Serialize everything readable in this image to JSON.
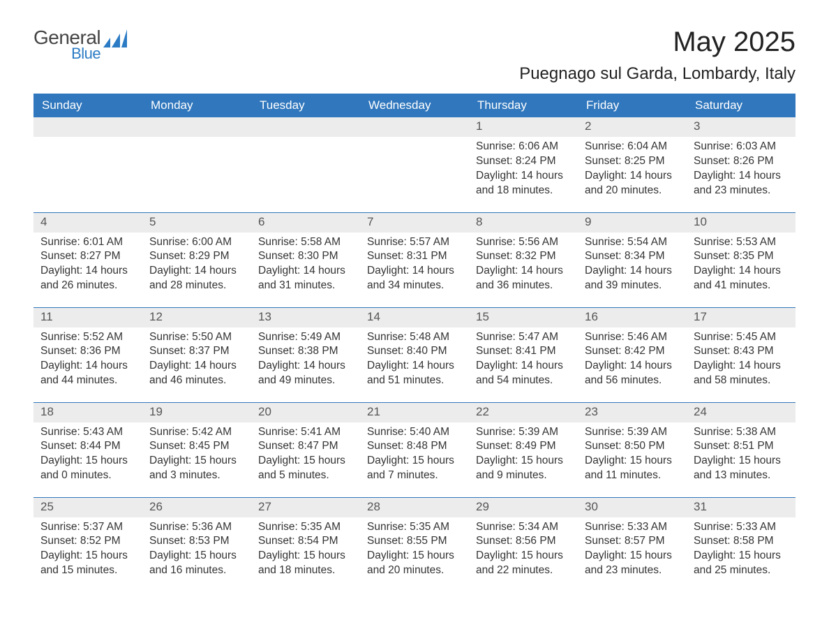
{
  "brand": {
    "line1": "General",
    "line2": "Blue",
    "accent_color": "#2c7cc5"
  },
  "title": "May 2025",
  "location": "Puegnago sul Garda, Lombardy, Italy",
  "header_bg": "#3077bd",
  "header_text_color": "#ffffff",
  "daynum_bg": "#ececec",
  "day_border_color": "#3077bd",
  "background_color": "#ffffff",
  "text_color": "#333333",
  "font_family": "Segoe UI",
  "columns": [
    "Sunday",
    "Monday",
    "Tuesday",
    "Wednesday",
    "Thursday",
    "Friday",
    "Saturday"
  ],
  "weeks": [
    [
      {
        "day": "",
        "lines": []
      },
      {
        "day": "",
        "lines": []
      },
      {
        "day": "",
        "lines": []
      },
      {
        "day": "",
        "lines": []
      },
      {
        "day": "1",
        "lines": [
          "Sunrise: 6:06 AM",
          "Sunset: 8:24 PM",
          "Daylight: 14 hours and 18 minutes."
        ]
      },
      {
        "day": "2",
        "lines": [
          "Sunrise: 6:04 AM",
          "Sunset: 8:25 PM",
          "Daylight: 14 hours and 20 minutes."
        ]
      },
      {
        "day": "3",
        "lines": [
          "Sunrise: 6:03 AM",
          "Sunset: 8:26 PM",
          "Daylight: 14 hours and 23 minutes."
        ]
      }
    ],
    [
      {
        "day": "4",
        "lines": [
          "Sunrise: 6:01 AM",
          "Sunset: 8:27 PM",
          "Daylight: 14 hours and 26 minutes."
        ]
      },
      {
        "day": "5",
        "lines": [
          "Sunrise: 6:00 AM",
          "Sunset: 8:29 PM",
          "Daylight: 14 hours and 28 minutes."
        ]
      },
      {
        "day": "6",
        "lines": [
          "Sunrise: 5:58 AM",
          "Sunset: 8:30 PM",
          "Daylight: 14 hours and 31 minutes."
        ]
      },
      {
        "day": "7",
        "lines": [
          "Sunrise: 5:57 AM",
          "Sunset: 8:31 PM",
          "Daylight: 14 hours and 34 minutes."
        ]
      },
      {
        "day": "8",
        "lines": [
          "Sunrise: 5:56 AM",
          "Sunset: 8:32 PM",
          "Daylight: 14 hours and 36 minutes."
        ]
      },
      {
        "day": "9",
        "lines": [
          "Sunrise: 5:54 AM",
          "Sunset: 8:34 PM",
          "Daylight: 14 hours and 39 minutes."
        ]
      },
      {
        "day": "10",
        "lines": [
          "Sunrise: 5:53 AM",
          "Sunset: 8:35 PM",
          "Daylight: 14 hours and 41 minutes."
        ]
      }
    ],
    [
      {
        "day": "11",
        "lines": [
          "Sunrise: 5:52 AM",
          "Sunset: 8:36 PM",
          "Daylight: 14 hours and 44 minutes."
        ]
      },
      {
        "day": "12",
        "lines": [
          "Sunrise: 5:50 AM",
          "Sunset: 8:37 PM",
          "Daylight: 14 hours and 46 minutes."
        ]
      },
      {
        "day": "13",
        "lines": [
          "Sunrise: 5:49 AM",
          "Sunset: 8:38 PM",
          "Daylight: 14 hours and 49 minutes."
        ]
      },
      {
        "day": "14",
        "lines": [
          "Sunrise: 5:48 AM",
          "Sunset: 8:40 PM",
          "Daylight: 14 hours and 51 minutes."
        ]
      },
      {
        "day": "15",
        "lines": [
          "Sunrise: 5:47 AM",
          "Sunset: 8:41 PM",
          "Daylight: 14 hours and 54 minutes."
        ]
      },
      {
        "day": "16",
        "lines": [
          "Sunrise: 5:46 AM",
          "Sunset: 8:42 PM",
          "Daylight: 14 hours and 56 minutes."
        ]
      },
      {
        "day": "17",
        "lines": [
          "Sunrise: 5:45 AM",
          "Sunset: 8:43 PM",
          "Daylight: 14 hours and 58 minutes."
        ]
      }
    ],
    [
      {
        "day": "18",
        "lines": [
          "Sunrise: 5:43 AM",
          "Sunset: 8:44 PM",
          "Daylight: 15 hours and 0 minutes."
        ]
      },
      {
        "day": "19",
        "lines": [
          "Sunrise: 5:42 AM",
          "Sunset: 8:45 PM",
          "Daylight: 15 hours and 3 minutes."
        ]
      },
      {
        "day": "20",
        "lines": [
          "Sunrise: 5:41 AM",
          "Sunset: 8:47 PM",
          "Daylight: 15 hours and 5 minutes."
        ]
      },
      {
        "day": "21",
        "lines": [
          "Sunrise: 5:40 AM",
          "Sunset: 8:48 PM",
          "Daylight: 15 hours and 7 minutes."
        ]
      },
      {
        "day": "22",
        "lines": [
          "Sunrise: 5:39 AM",
          "Sunset: 8:49 PM",
          "Daylight: 15 hours and 9 minutes."
        ]
      },
      {
        "day": "23",
        "lines": [
          "Sunrise: 5:39 AM",
          "Sunset: 8:50 PM",
          "Daylight: 15 hours and 11 minutes."
        ]
      },
      {
        "day": "24",
        "lines": [
          "Sunrise: 5:38 AM",
          "Sunset: 8:51 PM",
          "Daylight: 15 hours and 13 minutes."
        ]
      }
    ],
    [
      {
        "day": "25",
        "lines": [
          "Sunrise: 5:37 AM",
          "Sunset: 8:52 PM",
          "Daylight: 15 hours and 15 minutes."
        ]
      },
      {
        "day": "26",
        "lines": [
          "Sunrise: 5:36 AM",
          "Sunset: 8:53 PM",
          "Daylight: 15 hours and 16 minutes."
        ]
      },
      {
        "day": "27",
        "lines": [
          "Sunrise: 5:35 AM",
          "Sunset: 8:54 PM",
          "Daylight: 15 hours and 18 minutes."
        ]
      },
      {
        "day": "28",
        "lines": [
          "Sunrise: 5:35 AM",
          "Sunset: 8:55 PM",
          "Daylight: 15 hours and 20 minutes."
        ]
      },
      {
        "day": "29",
        "lines": [
          "Sunrise: 5:34 AM",
          "Sunset: 8:56 PM",
          "Daylight: 15 hours and 22 minutes."
        ]
      },
      {
        "day": "30",
        "lines": [
          "Sunrise: 5:33 AM",
          "Sunset: 8:57 PM",
          "Daylight: 15 hours and 23 minutes."
        ]
      },
      {
        "day": "31",
        "lines": [
          "Sunrise: 5:33 AM",
          "Sunset: 8:58 PM",
          "Daylight: 15 hours and 25 minutes."
        ]
      }
    ]
  ]
}
